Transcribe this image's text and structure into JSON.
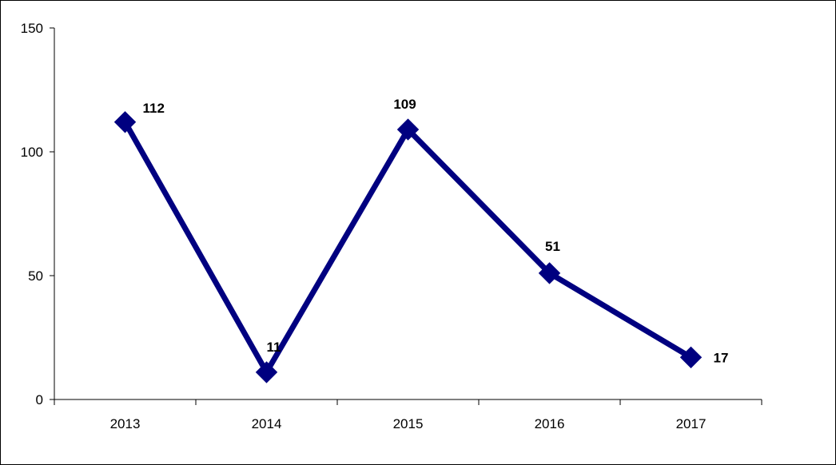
{
  "chart_data": {
    "type": "line",
    "title": "",
    "xlabel": "",
    "ylabel": "",
    "categories": [
      "2013",
      "2014",
      "2015",
      "2016",
      "2017"
    ],
    "series": [
      {
        "values": [
          112,
          11,
          109,
          51,
          17
        ],
        "color": "#000080",
        "marker": "diamond"
      }
    ],
    "ylim": [
      0,
      150
    ],
    "yticks": [
      0,
      50,
      100,
      150
    ],
    "data_labels": [
      "112",
      "11",
      "109",
      "51",
      "17"
    ],
    "grid": false,
    "legend": "none"
  }
}
